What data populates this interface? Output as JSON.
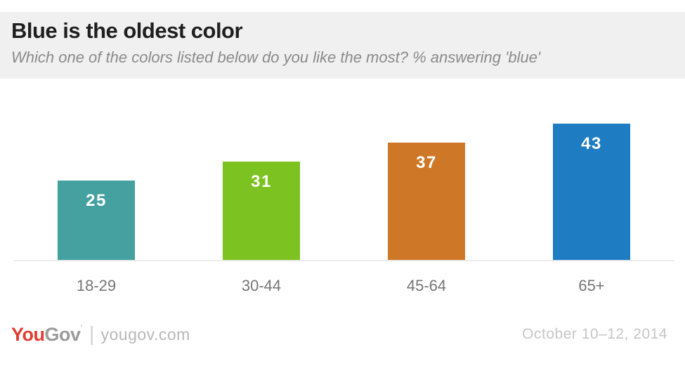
{
  "header": {
    "title": "Blue is the oldest color",
    "subtitle": "Which one of the colors listed below do you like the most? % answering 'blue'"
  },
  "chart_data": {
    "type": "bar",
    "title": "Blue is the oldest color",
    "subtitle": "Which one of the colors listed below do you like the most? % answering 'blue'",
    "categories": [
      "18-29",
      "30-44",
      "45-64",
      "65+"
    ],
    "values": [
      25,
      31,
      37,
      43
    ],
    "value_labels": [
      "25",
      "31",
      "37",
      "43"
    ],
    "bar_colors": [
      "#45a0a0",
      "#7cc220",
      "#ce7827",
      "#1e7cc2"
    ],
    "value_label_color": "#ffffff",
    "category_label_color": "#757575",
    "axis_line_color": "#ececec",
    "xlabel": "",
    "ylabel": "",
    "ylim": [
      0,
      51.5
    ],
    "grid": false,
    "legend_position": "none"
  },
  "footer": {
    "logo": {
      "you": "You",
      "gov": "Gov",
      "mark": "’"
    },
    "divider": "|",
    "site": "yougov.com",
    "date": "October 10–12, 2014"
  }
}
